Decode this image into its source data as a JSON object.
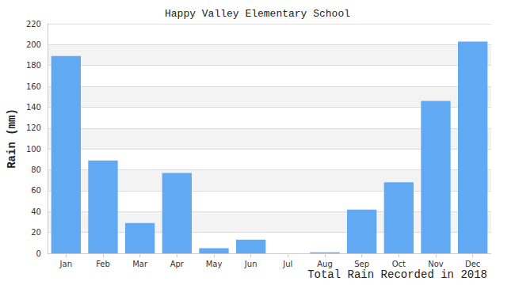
{
  "chart_data": {
    "type": "bar",
    "title": "Happy Valley Elementary School",
    "x_label": "Total Rain Recorded in 2018",
    "y_label": "Rain (mm)",
    "categories": [
      "Jan",
      "Feb",
      "Mar",
      "Apr",
      "May",
      "Jun",
      "Jul",
      "Aug",
      "Sep",
      "Oct",
      "Nov",
      "Dec"
    ],
    "values": [
      189,
      89,
      29,
      77,
      5,
      13,
      0,
      1,
      42,
      68,
      146,
      203
    ],
    "color": "#62a9f4",
    "ylim": [
      0,
      220
    ],
    "yticks": [
      0,
      20,
      40,
      60,
      80,
      100,
      120,
      140,
      160,
      180,
      200,
      220
    ],
    "grid": true
  }
}
